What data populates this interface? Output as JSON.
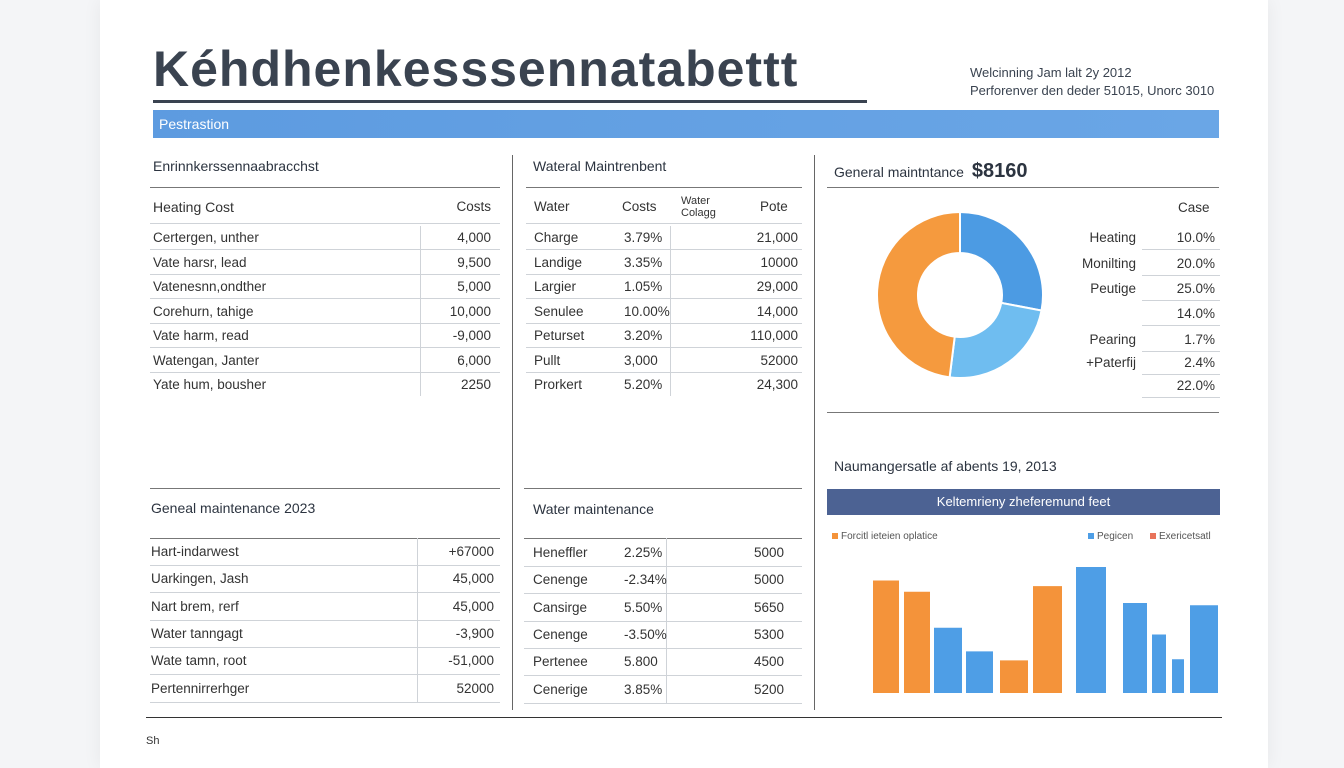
{
  "title": "Kéhdhenkesssennatabettt",
  "meta": {
    "line1": "Welcinning Jam lalt 2y 2012",
    "line2": "Perforenver den deder 51015, Unorc 3010"
  },
  "banner": "Pestrastion",
  "table_a": {
    "title": "Enrinnkerssennaabracchst",
    "header": [
      "Heating Cost",
      "Costs"
    ],
    "rows": [
      [
        "Certergen, unther",
        "4,000"
      ],
      [
        "Vate harsr, lead",
        "9,500"
      ],
      [
        "Vatenesnn,ondther",
        "5,000"
      ],
      [
        "Corehurn, tahige",
        "10,000"
      ],
      [
        "Vate harm, read",
        "-9,000"
      ],
      [
        "Watengan, Janter",
        "6,000"
      ],
      [
        "Yate hum, bousher",
        "2250"
      ]
    ]
  },
  "table_b": {
    "title": "Wateral Maintrenbent",
    "header": [
      "Water",
      "Costs",
      "Water Colagg",
      "Pote"
    ],
    "rows": [
      [
        "Charge",
        "3.79%",
        "21,000"
      ],
      [
        "Landige",
        "3.35%",
        "10000"
      ],
      [
        "Largier",
        "1.05%",
        "29,000"
      ],
      [
        "Senulee",
        "10.00%",
        "14,000"
      ],
      [
        "Peturset",
        "3.20%",
        "110,000"
      ],
      [
        "Pullt",
        "3,000",
        "52000"
      ],
      [
        "Prorkert",
        "5.20%",
        "24,300"
      ]
    ]
  },
  "donut": {
    "title": "General maintntance",
    "amount": "$8160",
    "column": "Case",
    "items": [
      [
        "Heating",
        "10.0%"
      ],
      [
        "Monilting",
        "20.0%"
      ],
      [
        "Peutige",
        "25.0%"
      ],
      [
        "",
        "14.0%"
      ],
      [
        "Pearing",
        "1.7%"
      ],
      [
        "+Paterfij",
        "2.4%"
      ],
      [
        "",
        "22.0%"
      ]
    ]
  },
  "table_c": {
    "title": "Geneal maintenance 2023",
    "rows": [
      [
        "Hart-indarwest",
        "+67000"
      ],
      [
        "Uarkingen, Jash",
        "45,000"
      ],
      [
        "Nart brem, rerf",
        "45,000"
      ],
      [
        "Water tanngagt",
        "-3,900"
      ],
      [
        "Wate tamn, root",
        "-51,000"
      ],
      [
        "Pertennirrerhger",
        "52000"
      ]
    ]
  },
  "table_d": {
    "title": "Water maintenance",
    "rows": [
      [
        "Heneffler",
        "2.25%",
        "5000"
      ],
      [
        "Cenenge",
        "-2.34%",
        "5000"
      ],
      [
        "Cansirge",
        "5.50%",
        "5650"
      ],
      [
        "Cenenge",
        "-3.50%",
        "5300"
      ],
      [
        "Pertenee",
        "5.800",
        "4500"
      ],
      [
        "Cenerige",
        "3.85%",
        "5200"
      ]
    ]
  },
  "bar_panel": {
    "caption": "Naumangersatle af abents 19, 2013",
    "title": "Keltemrieny zheferemund feet",
    "legend": [
      "Forcitl ieteien oplatice",
      "Pegicen",
      "Exericetsatl"
    ]
  },
  "footer": "Sh",
  "chart_data": [
    {
      "type": "pie",
      "values": [
        28,
        24,
        48
      ],
      "colors": [
        "#4c9be3",
        "#6fbdf0",
        "#f59a3e"
      ]
    },
    {
      "type": "bar",
      "values": [
        100,
        90,
        58,
        37,
        29,
        95,
        112,
        80,
        52,
        30,
        78
      ],
      "colors": [
        "#f4933a",
        "#f4933a",
        "#4e9ee6",
        "#4e9ee6",
        "#f4933a",
        "#f4933a",
        "#4e9ee6",
        "#4e9ee6",
        "#4e9ee6",
        "#4e9ee6",
        "#4e9ee6"
      ],
      "ylim": [
        0,
        120
      ]
    }
  ]
}
